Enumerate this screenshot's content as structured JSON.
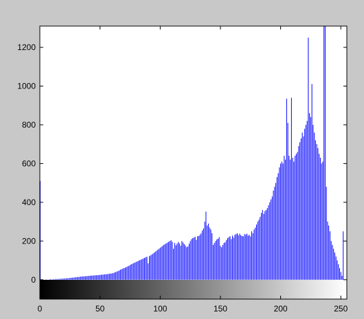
{
  "figure": {
    "background": "#c8c8c8",
    "axes_background": "#ffffff",
    "bar_color": "#0000ff"
  },
  "chart_data": {
    "type": "bar",
    "title": "",
    "xlabel": "",
    "ylabel": "",
    "xlim": [
      0,
      255
    ],
    "ylim": [
      -100,
      1310
    ],
    "grid": false,
    "legend": "none",
    "colorbar": {
      "type": "grayscale",
      "range": [
        0,
        255
      ]
    },
    "x_ticks": [
      0,
      50,
      100,
      150,
      200,
      250
    ],
    "y_ticks": [
      0,
      200,
      400,
      600,
      800,
      1000,
      1200
    ],
    "x_tick_labels": [
      "0",
      "50",
      "100",
      "150",
      "200",
      "250"
    ],
    "y_tick_labels": [
      "0",
      "200",
      "400",
      "600",
      "800",
      "1000",
      "1200"
    ],
    "series": [
      {
        "x_start": 0,
        "values": [
          510,
          0,
          0,
          1,
          0,
          2,
          1,
          0,
          2,
          3,
          1,
          3,
          2,
          4,
          3,
          4,
          4,
          5,
          5,
          6,
          6,
          7,
          7,
          8,
          8,
          9,
          10,
          11,
          11,
          12,
          13,
          14,
          14,
          15,
          16,
          17,
          17,
          18,
          18,
          19,
          19,
          20,
          21,
          21,
          22,
          22,
          23,
          23,
          24,
          24,
          25,
          26,
          26,
          27,
          28,
          28,
          29,
          30,
          31,
          32,
          33,
          35,
          37,
          40,
          42,
          45,
          48,
          52,
          55,
          58,
          60,
          63,
          66,
          69,
          72,
          76,
          80,
          83,
          86,
          89,
          92,
          95,
          98,
          101,
          104,
          107,
          110,
          113,
          116,
          119,
          85,
          122,
          126,
          130,
          135,
          140,
          145,
          150,
          155,
          160,
          165,
          170,
          175,
          180,
          184,
          188,
          192,
          196,
          200,
          204,
          196,
          160,
          190,
          178,
          186,
          195,
          188,
          176,
          200,
          192,
          184,
          176,
          168,
          172,
          186,
          200,
          210,
          215,
          218,
          222,
          206,
          225,
          226,
          232,
          240,
          255,
          265,
          300,
          352,
          280,
          290,
          270,
          260,
          240,
          180,
          190,
          200,
          208,
          212,
          220,
          175,
          168,
          180,
          190,
          194,
          205,
          215,
          220,
          225,
          210,
          228,
          218,
          232,
          236,
          240,
          230,
          238,
          230,
          226,
          224,
          236,
          232,
          238,
          228,
          232,
          224,
          250,
          240,
          260,
          270,
          285,
          300,
          310,
          325,
          345,
          360,
          340,
          355,
          360,
          370,
          385,
          400,
          415,
          430,
          460,
          480,
          500,
          530,
          550,
          580,
          600,
          610,
          600,
          640,
          620,
          935,
          810,
          640,
          620,
          940,
          630,
          610,
          640,
          650,
          660,
          690,
          710,
          730,
          760,
          740,
          780,
          800,
          820,
          1250,
          860,
          840,
          1010,
          800,
          760,
          720,
          700,
          680,
          650,
          630,
          600,
          610,
          1310,
          1310,
          480,
          300,
          280,
          250,
          200,
          180,
          160,
          140,
          120,
          100,
          80,
          60,
          40,
          20,
          250
        ]
      }
    ]
  }
}
